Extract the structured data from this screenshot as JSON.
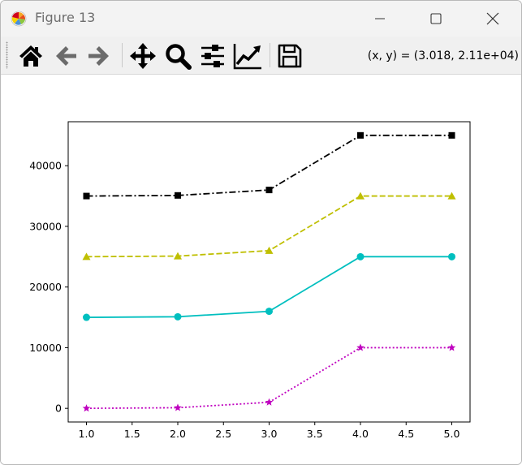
{
  "window": {
    "title": "Figure 13",
    "minimize_icon": "minimize-icon",
    "maximize_icon": "maximize-icon",
    "close_icon": "close-icon"
  },
  "toolbar": {
    "buttons": [
      {
        "name": "home",
        "icon": "home-icon"
      },
      {
        "name": "back",
        "icon": "back-arrow-icon"
      },
      {
        "name": "forward",
        "icon": "forward-arrow-icon"
      },
      {
        "name": "pan",
        "icon": "move-arrows-icon"
      },
      {
        "name": "zoom",
        "icon": "magnifier-icon"
      },
      {
        "name": "configure-subplots",
        "icon": "sliders-icon"
      },
      {
        "name": "edit-axis",
        "icon": "line-chart-icon"
      },
      {
        "name": "save",
        "icon": "floppy-disk-icon"
      }
    ],
    "coordinates": "(x, y) = (3.018, 2.11e+04)"
  },
  "chart_data": {
    "type": "line",
    "x": [
      1.0,
      2.0,
      3.0,
      4.0,
      5.0
    ],
    "xlim": [
      0.8,
      5.2
    ],
    "ylim": [
      -2250,
      47250
    ],
    "xticks": [
      "1.0",
      "1.5",
      "2.0",
      "2.5",
      "3.0",
      "3.5",
      "4.0",
      "4.5",
      "5.0"
    ],
    "yticks": [
      "0",
      "10000",
      "20000",
      "30000",
      "40000"
    ],
    "series": [
      {
        "values": [
          35000,
          35100,
          36000,
          45000,
          45000
        ],
        "color": "#000000",
        "linestyle": "dashdot",
        "marker": "square"
      },
      {
        "values": [
          25000,
          25100,
          26000,
          35000,
          35000
        ],
        "color": "#bfbf00",
        "linestyle": "dashed",
        "marker": "triangle"
      },
      {
        "values": [
          15000,
          15100,
          16000,
          25000,
          25000
        ],
        "color": "#00bfbf",
        "linestyle": "solid",
        "marker": "circle"
      },
      {
        "values": [
          0,
          100,
          1000,
          10000,
          10000
        ],
        "color": "#bf00bf",
        "linestyle": "dotted",
        "marker": "star"
      }
    ]
  }
}
